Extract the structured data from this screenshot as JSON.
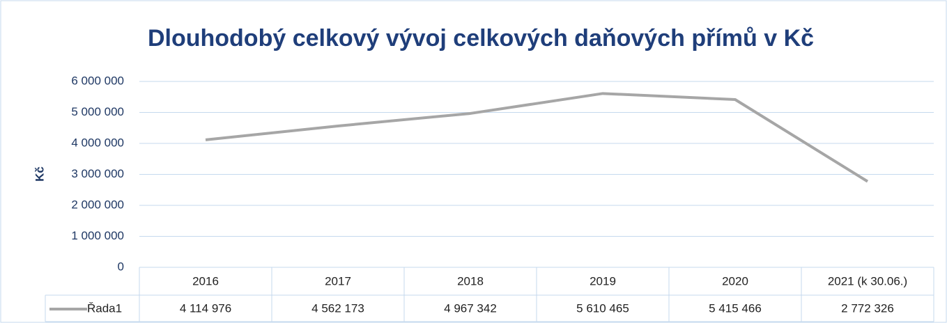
{
  "chart_data": {
    "type": "line",
    "title": "Dlouhodobý celkový vývoj celkových daňových přímů v Kč",
    "y_label": "Kč",
    "categories": [
      "2016",
      "2017",
      "2018",
      "2019",
      "2020",
      "2021 (k 30.06.)"
    ],
    "series": [
      {
        "name": "Řada1",
        "color": "#a6a6a6",
        "values": [
          4114976,
          4562173,
          4967342,
          5610465,
          5415466,
          2772326
        ],
        "value_labels": [
          "4 114 976",
          "4 562 173",
          "4 967 342",
          "5 610 465",
          "5 415 466",
          "2 772 326"
        ]
      }
    ],
    "ylim": [
      0,
      6000000
    ],
    "yticks": [
      0,
      {
        "value": 1000000,
        "label": "1 000 000"
      },
      {
        "value": 2000000,
        "label": "2 000 000"
      },
      {
        "value": 3000000,
        "label": "3 000 000"
      },
      {
        "value": 4000000,
        "label": "4 000 000"
      },
      {
        "value": 5000000,
        "label": "5 000 000"
      },
      {
        "value": 6000000,
        "label": "6 000 000"
      }
    ],
    "grid": true
  }
}
